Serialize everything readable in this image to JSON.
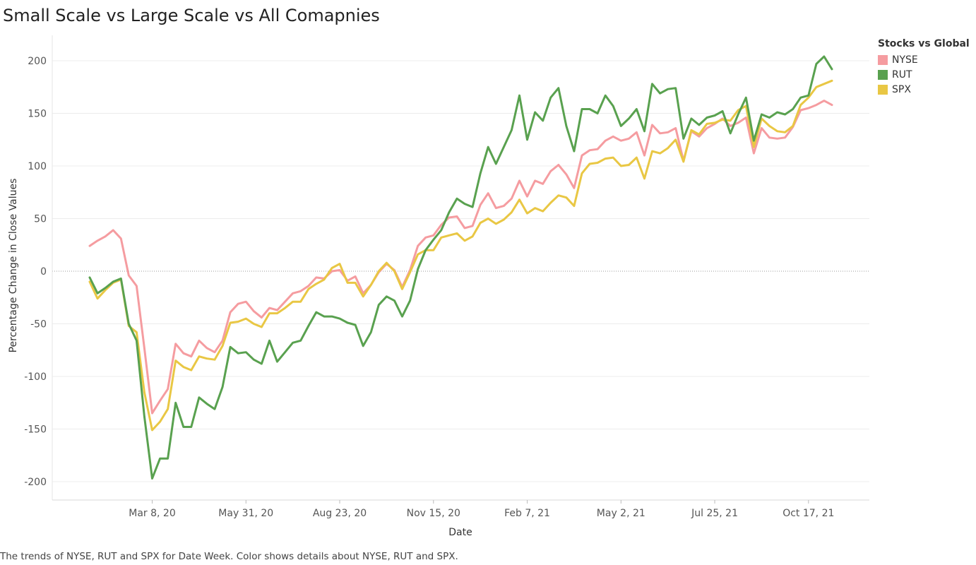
{
  "title": "Small Scale vs Large Scale vs All Comapnies",
  "caption": "The trends of NYSE, RUT and SPX for Date Week.  Color shows details about NYSE, RUT and SPX.",
  "legend": {
    "title": "Stocks vs Global",
    "items": [
      {
        "label": "NYSE",
        "color": "#f59ca0"
      },
      {
        "label": "RUT",
        "color": "#59a14f"
      },
      {
        "label": "SPX",
        "color": "#e9c744"
      }
    ]
  },
  "chart_data": {
    "type": "line",
    "title": "Small Scale vs Large Scale vs All Comapnies",
    "xlabel": "Date",
    "ylabel": "Percentage Change in Close Values",
    "ylim": [
      -220,
      220
    ],
    "yticks": [
      200,
      150,
      100,
      50,
      0,
      -50,
      -100,
      -150,
      -200
    ],
    "xlim": [
      0,
      101
    ],
    "xticks": [
      {
        "x": 8,
        "label": "Mar 8, 20"
      },
      {
        "x": 20,
        "label": "May 31, 20"
      },
      {
        "x": 32,
        "label": "Aug 23, 20"
      },
      {
        "x": 44,
        "label": "Nov 15, 20"
      },
      {
        "x": 56,
        "label": "Feb 7, 21"
      },
      {
        "x": 68,
        "label": "May 2, 21"
      },
      {
        "x": 80,
        "label": "Jul 25, 21"
      },
      {
        "x": 92,
        "label": "Oct 17, 21"
      }
    ],
    "zero_line": true,
    "legend_position": "top-right",
    "series": [
      {
        "name": "NYSE",
        "color": "#f59ca0",
        "values": [
          24,
          29,
          33,
          39,
          31,
          -4,
          -14,
          -73,
          -135,
          -123,
          -112,
          -69,
          -78,
          -81,
          -66,
          -73,
          -77,
          -66,
          -39,
          -31,
          -29,
          -38,
          -44,
          -35,
          -37,
          -29,
          -21,
          -19,
          -14,
          -6,
          -7,
          0,
          1,
          -9,
          -5,
          -21,
          -13,
          -1,
          7,
          1,
          -15,
          1,
          24,
          32,
          34,
          44,
          51,
          52,
          41,
          43,
          63,
          74,
          60,
          62,
          69,
          86,
          71,
          86,
          83,
          95,
          101,
          92,
          79,
          110,
          115,
          116,
          124,
          128,
          124,
          126,
          132,
          110,
          139,
          131,
          132,
          136,
          105,
          133,
          128,
          136,
          140,
          145,
          138,
          141,
          146,
          112,
          136,
          127,
          126,
          127,
          137,
          153,
          155,
          158,
          162,
          158
        ]
      },
      {
        "name": "RUT",
        "color": "#59a14f",
        "values": [
          -6,
          -21,
          -16,
          -10,
          -7,
          -50,
          -66,
          -138,
          -197,
          -178,
          -178,
          -125,
          -148,
          -148,
          -120,
          -126,
          -131,
          -110,
          -72,
          -78,
          -77,
          -84,
          -88,
          -66,
          -86,
          -77,
          -68,
          -66,
          -52,
          -39,
          -43,
          -43,
          -45,
          -49,
          -51,
          -71,
          -58,
          -32,
          -24,
          -28,
          -43,
          -28,
          2,
          20,
          30,
          39,
          56,
          69,
          64,
          61,
          93,
          118,
          102,
          118,
          134,
          167,
          125,
          151,
          143,
          165,
          174,
          138,
          114,
          154,
          154,
          150,
          167,
          157,
          138,
          145,
          154,
          133,
          178,
          169,
          173,
          174,
          126,
          145,
          139,
          146,
          148,
          152,
          131,
          149,
          165,
          124,
          149,
          146,
          151,
          149,
          154,
          165,
          167,
          197,
          204,
          192
        ]
      },
      {
        "name": "SPX",
        "color": "#e9c744",
        "values": [
          -10,
          -26,
          -18,
          -11,
          -8,
          -52,
          -58,
          -115,
          -151,
          -143,
          -131,
          -85,
          -91,
          -94,
          -81,
          -83,
          -84,
          -71,
          -49,
          -48,
          -45,
          -50,
          -53,
          -40,
          -40,
          -35,
          -29,
          -29,
          -17,
          -12,
          -8,
          3,
          7,
          -11,
          -11,
          -24,
          -13,
          0,
          8,
          0,
          -17,
          -1,
          16,
          20,
          20,
          32,
          34,
          36,
          29,
          33,
          46,
          50,
          45,
          49,
          56,
          68,
          55,
          60,
          57,
          65,
          72,
          70,
          62,
          93,
          102,
          103,
          107,
          108,
          100,
          101,
          108,
          88,
          114,
          112,
          117,
          125,
          104,
          134,
          130,
          140,
          141,
          144,
          143,
          153,
          157,
          118,
          145,
          138,
          133,
          132,
          138,
          158,
          165,
          175,
          178,
          181
        ]
      }
    ]
  }
}
